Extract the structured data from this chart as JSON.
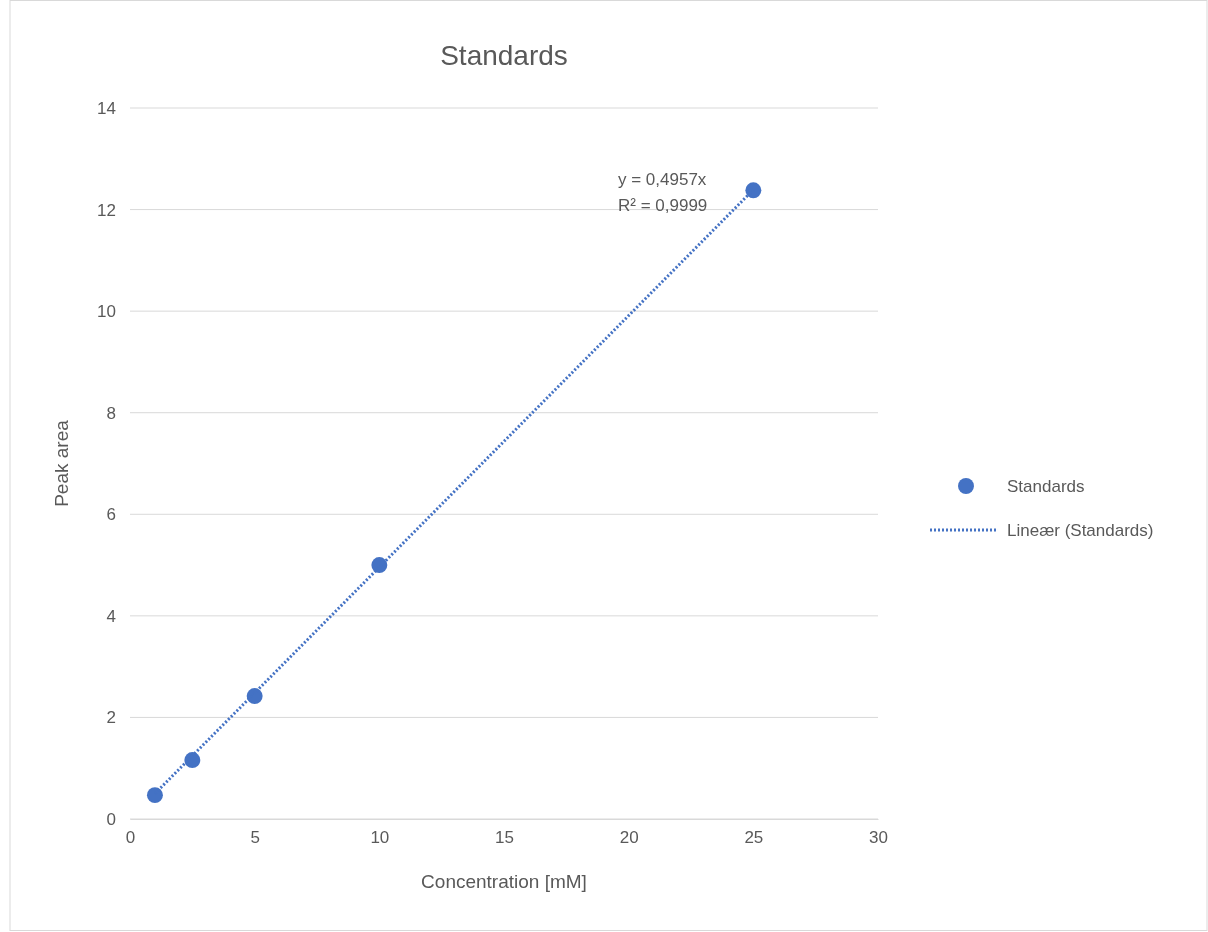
{
  "chart_data": {
    "type": "scatter",
    "title": "Standards",
    "xlabel": "Concentration [mM]",
    "ylabel": "Peak area",
    "xlim": [
      0,
      30
    ],
    "xticks": [
      0,
      5,
      10,
      15,
      20,
      25,
      30
    ],
    "ylim": [
      0,
      14
    ],
    "yticks": [
      0,
      2,
      4,
      6,
      8,
      10,
      12,
      14
    ],
    "grid": "y",
    "legend": "right",
    "series": [
      {
        "name": "Standards",
        "color": "#4472c4",
        "marker": "circle",
        "x": [
          1,
          2.5,
          5,
          10,
          25
        ],
        "values": [
          0.47,
          1.16,
          2.42,
          5.0,
          12.38
        ]
      },
      {
        "name": "Lineær (Standards)",
        "type": "line",
        "color": "#4472c4",
        "marker": "none",
        "line_style": "dotted",
        "x": [
          1,
          25
        ],
        "values": [
          0.5,
          12.39
        ]
      }
    ],
    "annotations": [
      "y = 0,4957x",
      "R² = 0,9999"
    ]
  }
}
